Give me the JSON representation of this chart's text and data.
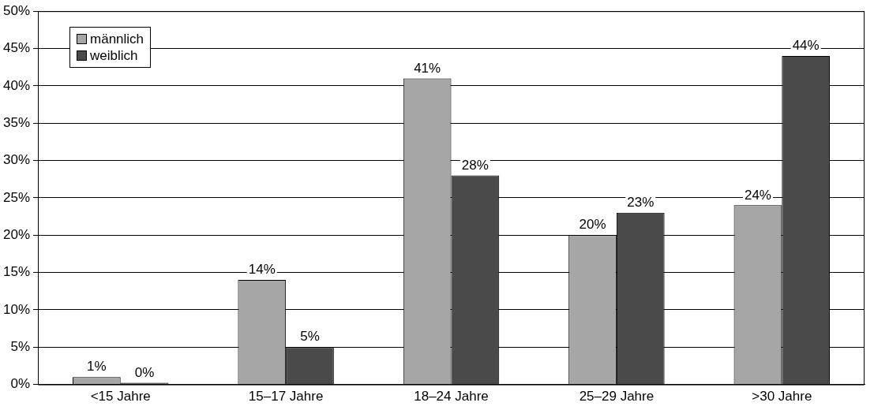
{
  "chart_data": {
    "type": "bar",
    "categories": [
      "<15 Jahre",
      "15–17 Jahre",
      "18–24 Jahre",
      "25–29 Jahre",
      ">30 Jahre"
    ],
    "series": [
      {
        "name": "männlich",
        "color": "#a6a6a6",
        "values": [
          1,
          14,
          41,
          20,
          24
        ],
        "value_labels": [
          "1%",
          "14%",
          "41%",
          "20%",
          "24%"
        ]
      },
      {
        "name": "weiblich",
        "color": "#4a4a4a",
        "values": [
          0,
          5,
          28,
          23,
          44
        ],
        "value_labels": [
          "0%",
          "5%",
          "28%",
          "23%",
          "44%"
        ]
      }
    ],
    "ylim": [
      0,
      50
    ],
    "yticks": [
      {
        "value": 0,
        "label": "0%"
      },
      {
        "value": 5,
        "label": "5%"
      },
      {
        "value": 10,
        "label": "10%"
      },
      {
        "value": 15,
        "label": "15%"
      },
      {
        "value": 20,
        "label": "20%"
      },
      {
        "value": 25,
        "label": "25%"
      },
      {
        "value": 30,
        "label": "30%"
      },
      {
        "value": 35,
        "label": "35%"
      },
      {
        "value": 40,
        "label": "40%"
      },
      {
        "value": 45,
        "label": "45%"
      },
      {
        "value": 50,
        "label": "50%"
      }
    ],
    "grid": "y",
    "legend": "top left"
  }
}
